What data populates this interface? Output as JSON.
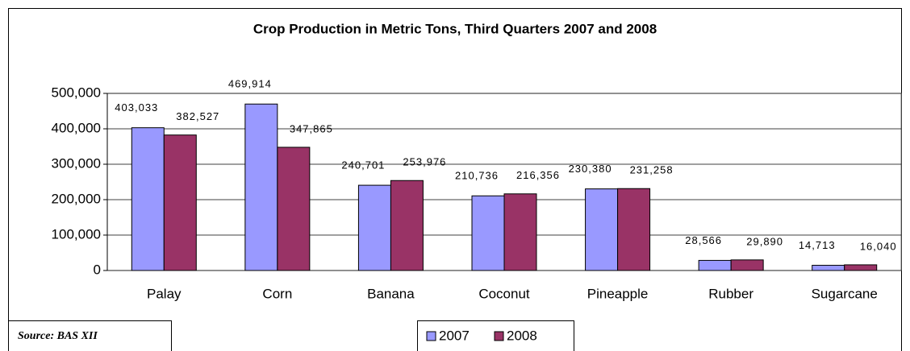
{
  "chart_data": {
    "type": "bar",
    "title": "Crop Production in Metric Tons, Third Quarters 2007 and 2008",
    "source": "Source:  BAS XII",
    "categories": [
      "Palay",
      "Corn",
      "Banana",
      "Coconut",
      "Pineapple",
      "Rubber",
      "Sugarcane"
    ],
    "series": [
      {
        "name": "2007",
        "color": "#9999ff",
        "values": [
          403033,
          469914,
          240701,
          210736,
          230380,
          28566,
          14713
        ],
        "value_labels": [
          "403,033",
          "469,914",
          "240,701",
          "210,736",
          "230,380",
          "28,566",
          "14,713"
        ]
      },
      {
        "name": "2008",
        "color": "#993366",
        "values": [
          382527,
          347865,
          253976,
          216356,
          231258,
          29890,
          16040
        ],
        "value_labels": [
          "382,527",
          "347,865",
          "253,976",
          "216,356",
          "231,258",
          "29,890",
          "16,040"
        ]
      }
    ],
    "ylim": [
      0,
      500000
    ],
    "yticks": [
      0,
      {
        "value": 100000,
        "label": "100,000"
      },
      {
        "value": 200000,
        "label": "200,000"
      },
      {
        "value": 300000,
        "label": "300,000"
      },
      {
        "value": 400000,
        "label": "400,000"
      },
      {
        "value": 500000,
        "label": "500,000"
      }
    ],
    "grid": true,
    "legend": "bottom"
  }
}
